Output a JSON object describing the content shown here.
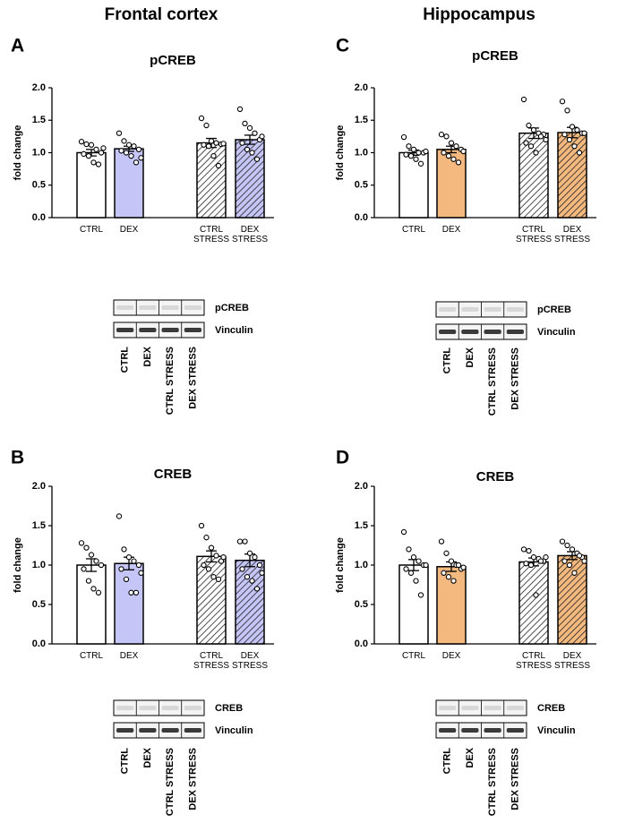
{
  "headings": [
    "Frontal cortex",
    "Hippocampus"
  ],
  "chart_data": [
    {
      "panel": "A",
      "type": "bar",
      "title": "pCREB",
      "y_label": "fold change",
      "categories": [
        "CTRL",
        "DEX",
        "CTRL STRESS",
        "DEX STRESS"
      ],
      "values": [
        1.0,
        1.06,
        1.15,
        1.2
      ],
      "errors": [
        0.05,
        0.04,
        0.07,
        0.07
      ],
      "points": [
        [
          1.17,
          1.13,
          1.12,
          1.05,
          1.0,
          0.98,
          0.95,
          0.85,
          0.82,
          1.07
        ],
        [
          1.3,
          1.18,
          1.12,
          1.1,
          1.05,
          1.03,
          1.0,
          0.95,
          0.85,
          0.92
        ],
        [
          1.53,
          1.42,
          1.18,
          1.15,
          1.13,
          1.12,
          1.1,
          0.95,
          0.8,
          1.14
        ],
        [
          1.67,
          1.45,
          1.38,
          1.3,
          1.2,
          1.15,
          1.05,
          1.0,
          0.9,
          1.25
        ]
      ],
      "colors": [
        "#ffffff",
        "#c5c5f7",
        "#ffffff",
        "#c5c5f7"
      ],
      "hatched": [
        false,
        false,
        true,
        true
      ],
      "ylim": [
        0,
        2
      ],
      "yticks": [
        {
          "value": 0,
          "label": "0.0"
        },
        0.5,
        {
          "value": 1,
          "label": "1.0"
        },
        1.5,
        {
          "value": 2,
          "label": "2.0"
        }
      ],
      "blot": {
        "bands": [
          "pCREB",
          "Vinculin"
        ],
        "lanes": [
          "CTRL",
          "DEX",
          "CTRL STRESS",
          "DEX STRESS"
        ]
      }
    },
    {
      "panel": "B",
      "type": "bar",
      "title": "CREB",
      "y_label": "fold change",
      "categories": [
        "CTRL",
        "DEX",
        "CTRL STRESS",
        "DEX STRESS"
      ],
      "values": [
        1.0,
        1.02,
        1.11,
        1.06
      ],
      "errors": [
        0.08,
        0.08,
        0.07,
        0.08
      ],
      "points": [
        [
          1.28,
          1.22,
          1.13,
          1.05,
          1.0,
          0.95,
          0.8,
          0.7,
          0.65
        ],
        [
          1.62,
          1.2,
          1.1,
          1.05,
          1.0,
          0.95,
          0.82,
          0.65,
          0.65,
          0.9
        ],
        [
          1.5,
          1.35,
          1.22,
          1.12,
          1.05,
          1.0,
          0.95,
          0.85,
          0.82,
          1.1
        ],
        [
          1.3,
          1.3,
          1.15,
          1.1,
          1.0,
          0.95,
          0.85,
          0.8,
          0.7,
          0.9
        ]
      ],
      "colors": [
        "#ffffff",
        "#c5c5f7",
        "#ffffff",
        "#c5c5f7"
      ],
      "hatched": [
        false,
        false,
        true,
        true
      ],
      "ylim": [
        0,
        2
      ],
      "yticks": [
        {
          "value": 0,
          "label": "0.0"
        },
        0.5,
        {
          "value": 1,
          "label": "1.0"
        },
        1.5,
        {
          "value": 2,
          "label": "2.0"
        }
      ],
      "blot": {
        "bands": [
          "CREB",
          "Vinculin"
        ],
        "lanes": [
          "CTRL",
          "DEX",
          "CTRL STRESS",
          "DEX STRESS"
        ]
      }
    },
    {
      "panel": "C",
      "type": "bar",
      "title": "pCREB",
      "y_label": "fold change",
      "categories": [
        "CTRL",
        "DEX",
        "CTRL STRESS",
        "DEX STRESS"
      ],
      "values": [
        1.0,
        1.05,
        1.3,
        1.31
      ],
      "errors": [
        0.04,
        0.05,
        0.08,
        0.08
      ],
      "points": [
        [
          1.24,
          1.1,
          1.05,
          1.0,
          1.0,
          0.97,
          0.95,
          0.9,
          0.83,
          1.02
        ],
        [
          1.28,
          1.25,
          1.15,
          1.1,
          1.05,
          1.0,
          0.95,
          0.9,
          0.85,
          1.02
        ],
        [
          1.82,
          1.42,
          1.35,
          1.3,
          1.28,
          1.15,
          1.1,
          1.0,
          1.25,
          1.2
        ],
        [
          1.79,
          1.65,
          1.4,
          1.35,
          1.3,
          1.28,
          1.2,
          1.1,
          1.0,
          1.3
        ]
      ],
      "colors": [
        "#ffffff",
        "#f4b97f",
        "#ffffff",
        "#f4b97f"
      ],
      "hatched": [
        false,
        false,
        true,
        true
      ],
      "ylim": [
        0,
        2
      ],
      "yticks": [
        {
          "value": 0,
          "label": "0.0"
        },
        0.5,
        {
          "value": 1,
          "label": "1.0"
        },
        1.5,
        {
          "value": 2,
          "label": "2.0"
        }
      ],
      "blot": {
        "bands": [
          "pCREB",
          "Vinculin"
        ],
        "lanes": [
          "CTRL",
          "DEX",
          "CTRL STRESS",
          "DEX STRESS"
        ]
      }
    },
    {
      "panel": "D",
      "type": "bar",
      "title": "CREB",
      "y_label": "fold change",
      "categories": [
        "CTRL",
        "DEX",
        "CTRL STRESS",
        "DEX STRESS"
      ],
      "values": [
        1.0,
        0.98,
        1.04,
        1.12
      ],
      "errors": [
        0.07,
        0.06,
        0.05,
        0.05
      ],
      "points": [
        [
          1.42,
          1.2,
          1.1,
          1.05,
          1.0,
          0.95,
          0.9,
          0.8,
          0.62,
          1.0
        ],
        [
          1.3,
          1.15,
          1.05,
          1.0,
          0.95,
          0.9,
          0.85,
          0.8,
          1.0,
          0.97
        ],
        [
          1.2,
          1.18,
          1.1,
          1.08,
          1.05,
          1.02,
          1.0,
          0.62,
          1.05,
          1.1
        ],
        [
          1.3,
          1.25,
          1.2,
          1.15,
          1.1,
          1.05,
          1.0,
          0.9,
          1.12,
          1.05
        ]
      ],
      "colors": [
        "#ffffff",
        "#f4b97f",
        "#ffffff",
        "#f4b97f"
      ],
      "hatched": [
        false,
        false,
        true,
        true
      ],
      "ylim": [
        0,
        2
      ],
      "yticks": [
        {
          "value": 0,
          "label": "0.0"
        },
        0.5,
        {
          "value": 1,
          "label": "1.0"
        },
        1.5,
        {
          "value": 2,
          "label": "2.0"
        }
      ],
      "blot": {
        "bands": [
          "CREB",
          "Vinculin"
        ],
        "lanes": [
          "CTRL",
          "DEX",
          "CTRL STRESS",
          "DEX STRESS"
        ]
      }
    }
  ]
}
